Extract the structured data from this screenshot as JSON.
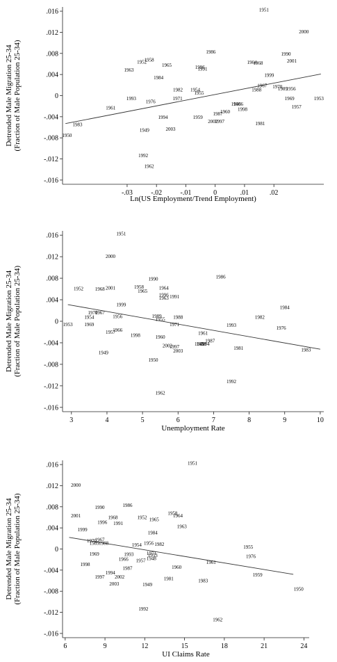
{
  "chart_data": [
    {
      "type": "scatter",
      "xlabel": "Ln(US Employment/Trend Employment)",
      "ylabel": [
        "Detrended Male Migration 25-34",
        "(Fraction of Male Population 25-34)"
      ],
      "xlim": [
        -0.052,
        0.037
      ],
      "ylim": [
        -0.0168,
        0.0168
      ],
      "xticks": [
        -0.03,
        -0.02,
        -0.01,
        0,
        0.01,
        0.02
      ],
      "xtick_labels": [
        "-.03",
        "-.02",
        "-.01",
        "0",
        ".01",
        ".02"
      ],
      "yticks": [
        0.016,
        0.012,
        0.008,
        0.004,
        0,
        -0.004,
        -0.008,
        -0.012,
        -0.016
      ],
      "ytick_labels": [
        ".016",
        ".012",
        ".008",
        ".004",
        "0",
        "-.004",
        "-.008",
        "-.012",
        "-.016"
      ],
      "fit_line": {
        "x": [
          -0.051,
          0.036
        ],
        "y": [
          -0.0053,
          0.0041
        ]
      },
      "points": [
        {
          "label": "1951",
          "x": 0.0166,
          "y": 0.0163
        },
        {
          "label": "2000",
          "x": 0.0302,
          "y": 0.0121
        },
        {
          "label": "1986",
          "x": -0.0015,
          "y": 0.0083
        },
        {
          "label": "1990",
          "x": 0.0241,
          "y": 0.0079
        },
        {
          "label": "2001",
          "x": 0.0261,
          "y": 0.0066
        },
        {
          "label": "1958",
          "x": -0.0225,
          "y": 0.0068
        },
        {
          "label": "1952",
          "x": -0.025,
          "y": 0.0064
        },
        {
          "label": "1965",
          "x": -0.0165,
          "y": 0.0058
        },
        {
          "label": "1996",
          "x": -0.0052,
          "y": 0.0054
        },
        {
          "label": "1991",
          "x": -0.0043,
          "y": 0.0051
        },
        {
          "label": "1963",
          "x": -0.0294,
          "y": 0.0049
        },
        {
          "label": "1964",
          "x": 0.0125,
          "y": 0.0063
        },
        {
          "label": "1968",
          "x": 0.0146,
          "y": 0.0062
        },
        {
          "label": "1999",
          "x": 0.0184,
          "y": 0.0039
        },
        {
          "label": "1984",
          "x": -0.0193,
          "y": 0.0034
        },
        {
          "label": "1967",
          "x": 0.016,
          "y": 0.0019
        },
        {
          "label": "1970",
          "x": 0.0212,
          "y": 0.0017
        },
        {
          "label": "1989",
          "x": 0.023,
          "y": 0.0013
        },
        {
          "label": "1956",
          "x": 0.0258,
          "y": 0.0013
        },
        {
          "label": "1988",
          "x": 0.0141,
          "y": 0.0011
        },
        {
          "label": "1982",
          "x": -0.0127,
          "y": 0.0011
        },
        {
          "label": "1954",
          "x": -0.0068,
          "y": 0.0011
        },
        {
          "label": "1955",
          "x": -0.0055,
          "y": 0.0005
        },
        {
          "label": "1993",
          "x": -0.0286,
          "y": -0.0005
        },
        {
          "label": "1971",
          "x": -0.0128,
          "y": -0.0005
        },
        {
          "label": "1953",
          "x": 0.0353,
          "y": -0.0005
        },
        {
          "label": "1976",
          "x": -0.022,
          "y": -0.0011
        },
        {
          "label": "1969",
          "x": 0.0253,
          "y": -0.0005
        },
        {
          "label": "1948",
          "x": 0.0071,
          "y": -0.0016
        },
        {
          "label": "1966",
          "x": 0.0079,
          "y": -0.0016
        },
        {
          "label": "1961",
          "x": -0.0356,
          "y": -0.0023
        },
        {
          "label": "1957",
          "x": 0.0277,
          "y": -0.0021
        },
        {
          "label": "1960",
          "x": 0.0034,
          "y": -0.003
        },
        {
          "label": "1998",
          "x": 0.0093,
          "y": -0.0026
        },
        {
          "label": "1987",
          "x": 0.0009,
          "y": -0.0034
        },
        {
          "label": "1994",
          "x": -0.0178,
          "y": -0.0041
        },
        {
          "label": "1959",
          "x": -0.0059,
          "y": -0.0041
        },
        {
          "label": "2002",
          "x": -0.0008,
          "y": -0.0049
        },
        {
          "label": "1997",
          "x": 0.0015,
          "y": -0.0049
        },
        {
          "label": "1983",
          "x": -0.0469,
          "y": -0.0055
        },
        {
          "label": "1981",
          "x": 0.0153,
          "y": -0.0053
        },
        {
          "label": "1949",
          "x": -0.0241,
          "y": -0.0065
        },
        {
          "label": "2003",
          "x": -0.0152,
          "y": -0.0063
        },
        {
          "label": "1950",
          "x": -0.0505,
          "y": -0.0075
        },
        {
          "label": "1992",
          "x": -0.0245,
          "y": -0.0113
        },
        {
          "label": "1962",
          "x": -0.0225,
          "y": -0.0134
        }
      ]
    },
    {
      "type": "scatter",
      "xlabel": "Unemployment Rate",
      "ylabel": [
        "Detrended Male Migration 25-34",
        "(Fraction of Male Population 25-34)"
      ],
      "xlim": [
        2.75,
        10.1
      ],
      "ylim": [
        -0.0168,
        0.0168
      ],
      "xticks": [
        3,
        4,
        5,
        6,
        7,
        8,
        9,
        10
      ],
      "xtick_labels": [
        "3",
        "4",
        "5",
        "6",
        "7",
        "8",
        "9",
        "10"
      ],
      "yticks": [
        0.016,
        0.012,
        0.008,
        0.004,
        0,
        -0.004,
        -0.008,
        -0.012,
        -0.016
      ],
      "ytick_labels": [
        ".016",
        ".012",
        ".008",
        ".004",
        "0",
        "-.004",
        "-.008",
        "-.012",
        "-.016"
      ],
      "fit_line": {
        "x": [
          2.9,
          10
        ],
        "y": [
          0.0031,
          -0.0052
        ]
      },
      "points": [
        {
          "label": "1951",
          "x": 4.4,
          "y": 0.0163
        },
        {
          "label": "2000",
          "x": 4.1,
          "y": 0.0121
        },
        {
          "label": "1990",
          "x": 5.3,
          "y": 0.0079
        },
        {
          "label": "1986",
          "x": 7.2,
          "y": 0.0083
        },
        {
          "label": "1952",
          "x": 3.2,
          "y": 0.0061
        },
        {
          "label": "2001",
          "x": 4.1,
          "y": 0.0062
        },
        {
          "label": "1968",
          "x": 3.8,
          "y": 0.006
        },
        {
          "label": "1958",
          "x": 4.9,
          "y": 0.0064
        },
        {
          "label": "1964",
          "x": 5.6,
          "y": 0.0062
        },
        {
          "label": "1965",
          "x": 5.0,
          "y": 0.0056
        },
        {
          "label": "1996",
          "x": 5.6,
          "y": 0.0049
        },
        {
          "label": "1991",
          "x": 5.9,
          "y": 0.0046
        },
        {
          "label": "1963",
          "x": 5.6,
          "y": 0.0043
        },
        {
          "label": "1999",
          "x": 4.4,
          "y": 0.0031
        },
        {
          "label": "1984",
          "x": 9.0,
          "y": 0.0026
        },
        {
          "label": "1970",
          "x": 3.6,
          "y": 0.0016
        },
        {
          "label": "1967",
          "x": 3.8,
          "y": 0.0016
        },
        {
          "label": "1954",
          "x": 3.5,
          "y": 0.0008
        },
        {
          "label": "1956",
          "x": 4.3,
          "y": 0.0009
        },
        {
          "label": "1989",
          "x": 5.4,
          "y": 0.001
        },
        {
          "label": "1955",
          "x": 5.5,
          "y": 0.0004
        },
        {
          "label": "1988",
          "x": 6.0,
          "y": 0.0008
        },
        {
          "label": "1982",
          "x": 8.3,
          "y": 0.0008
        },
        {
          "label": "1953",
          "x": 2.9,
          "y": -0.0006
        },
        {
          "label": "1969",
          "x": 3.5,
          "y": -0.0006
        },
        {
          "label": "1971",
          "x": 5.9,
          "y": -0.0006
        },
        {
          "label": "1993",
          "x": 7.5,
          "y": -0.0007
        },
        {
          "label": "1976",
          "x": 8.9,
          "y": -0.0012
        },
        {
          "label": "1966",
          "x": 4.3,
          "y": -0.0016
        },
        {
          "label": "1957",
          "x": 4.1,
          "y": -0.002
        },
        {
          "label": "1998",
          "x": 4.8,
          "y": -0.0026
        },
        {
          "label": "1960",
          "x": 5.5,
          "y": -0.0029
        },
        {
          "label": "1961",
          "x": 6.7,
          "y": -0.0022
        },
        {
          "label": "1987",
          "x": 6.9,
          "y": -0.0036
        },
        {
          "label": "1948",
          "x": 6.6,
          "y": -0.0042
        },
        {
          "label": "1959",
          "x": 6.65,
          "y": -0.0042
        },
        {
          "label": "1994",
          "x": 6.75,
          "y": -0.0042
        },
        {
          "label": "2002",
          "x": 5.7,
          "y": -0.0045
        },
        {
          "label": "1997",
          "x": 5.9,
          "y": -0.0047
        },
        {
          "label": "1981",
          "x": 7.7,
          "y": -0.005
        },
        {
          "label": "2003",
          "x": 6.0,
          "y": -0.0055
        },
        {
          "label": "1949",
          "x": 3.9,
          "y": -0.0058
        },
        {
          "label": "1950",
          "x": 5.3,
          "y": -0.0072
        },
        {
          "label": "1983",
          "x": 9.6,
          "y": -0.0053
        },
        {
          "label": "1992",
          "x": 7.5,
          "y": -0.0112
        },
        {
          "label": "1962",
          "x": 5.5,
          "y": -0.0133
        }
      ]
    },
    {
      "type": "scatter",
      "xlabel": "UI Claims Rate",
      "ylabel": [
        "Detrended Male Migration 25-34",
        "(Fraction of Male Population 25-34)"
      ],
      "xlim": [
        5.8,
        24.4
      ],
      "ylim": [
        -0.0168,
        0.0168
      ],
      "xticks": [
        6,
        9,
        12,
        15,
        18,
        21,
        24
      ],
      "xtick_labels": [
        "6",
        "9",
        "12",
        "15",
        "18",
        "21",
        "24"
      ],
      "yticks": [
        0.016,
        0.012,
        0.008,
        0.004,
        0,
        -0.004,
        -0.008,
        -0.012,
        -0.016
      ],
      "ytick_labels": [
        ".016",
        ".012",
        ".008",
        ".004",
        "0",
        "-.004",
        "-.008",
        "-.012",
        "-.016"
      ],
      "fit_line": {
        "x": [
          6.3,
          23.2
        ],
        "y": [
          0.0022,
          -0.0048
        ]
      },
      "points": [
        {
          "label": "1951",
          "x": 15.6,
          "y": 0.0163
        },
        {
          "label": "2000",
          "x": 6.8,
          "y": 0.0121
        },
        {
          "label": "1986",
          "x": 10.7,
          "y": 0.0083
        },
        {
          "label": "1990",
          "x": 8.6,
          "y": 0.0079
        },
        {
          "label": "1958",
          "x": 14.1,
          "y": 0.0068
        },
        {
          "label": "1964",
          "x": 14.5,
          "y": 0.0063
        },
        {
          "label": "2001",
          "x": 6.8,
          "y": 0.0063
        },
        {
          "label": "1968",
          "x": 9.6,
          "y": 0.006
        },
        {
          "label": "1952",
          "x": 11.8,
          "y": 0.006
        },
        {
          "label": "1965",
          "x": 12.7,
          "y": 0.0056
        },
        {
          "label": "1996",
          "x": 8.8,
          "y": 0.0051
        },
        {
          "label": "1991",
          "x": 10.0,
          "y": 0.0049
        },
        {
          "label": "1963",
          "x": 14.8,
          "y": 0.0043
        },
        {
          "label": "1999",
          "x": 7.3,
          "y": 0.0037
        },
        {
          "label": "1984",
          "x": 12.6,
          "y": 0.0031
        },
        {
          "label": "1970",
          "x": 8.0,
          "y": 0.0016
        },
        {
          "label": "1967",
          "x": 8.6,
          "y": 0.0018
        },
        {
          "label": "1989",
          "x": 8.2,
          "y": 0.0011
        },
        {
          "label": "1988",
          "x": 8.9,
          "y": 0.0011
        },
        {
          "label": "1954",
          "x": 11.4,
          "y": 0.0008
        },
        {
          "label": "1956",
          "x": 12.3,
          "y": 0.0011
        },
        {
          "label": "1982",
          "x": 13.1,
          "y": 0.0009
        },
        {
          "label": "1955",
          "x": 19.8,
          "y": 0.0004
        },
        {
          "label": "1969",
          "x": 8.2,
          "y": -0.0009
        },
        {
          "label": "1993",
          "x": 10.8,
          "y": -0.001
        },
        {
          "label": "1971",
          "x": 12.5,
          "y": -0.0008
        },
        {
          "label": "1953",
          "x": 12.6,
          "y": -0.0012
        },
        {
          "label": "1948",
          "x": 12.5,
          "y": -0.0018
        },
        {
          "label": "1976",
          "x": 20.0,
          "y": -0.0014
        },
        {
          "label": "1966",
          "x": 10.4,
          "y": -0.0019
        },
        {
          "label": "1957",
          "x": 11.7,
          "y": -0.0022
        },
        {
          "label": "1961",
          "x": 17.0,
          "y": -0.0025
        },
        {
          "label": "1998",
          "x": 7.5,
          "y": -0.0029
        },
        {
          "label": "1960",
          "x": 14.4,
          "y": -0.0034
        },
        {
          "label": "1987",
          "x": 10.7,
          "y": -0.0036
        },
        {
          "label": "1994",
          "x": 9.4,
          "y": -0.0045
        },
        {
          "label": "2002",
          "x": 10.1,
          "y": -0.0053
        },
        {
          "label": "1997",
          "x": 8.6,
          "y": -0.0053
        },
        {
          "label": "1959",
          "x": 20.5,
          "y": -0.0049
        },
        {
          "label": "1981",
          "x": 13.8,
          "y": -0.0056
        },
        {
          "label": "1983",
          "x": 16.4,
          "y": -0.006
        },
        {
          "label": "2003",
          "x": 9.7,
          "y": -0.0066
        },
        {
          "label": "1949",
          "x": 12.2,
          "y": -0.0067
        },
        {
          "label": "1950",
          "x": 23.6,
          "y": -0.0076
        },
        {
          "label": "1992",
          "x": 11.9,
          "y": -0.0113
        },
        {
          "label": "1962",
          "x": 17.5,
          "y": -0.0134
        }
      ]
    }
  ]
}
